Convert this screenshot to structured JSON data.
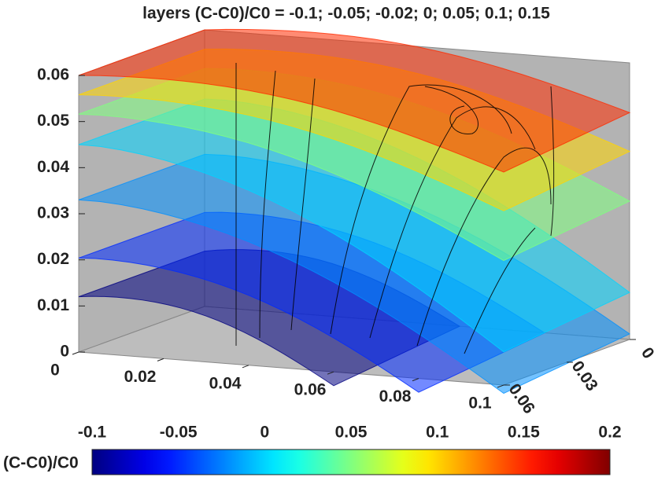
{
  "chart_data": {
    "type": "isosurface3d",
    "title": "layers (C-C0)/C0 = -0.1; -0.05; -0.02; 0; 0.05; 0.1; 0.15",
    "layers": [
      -0.1,
      -0.05,
      -0.02,
      0,
      0.05,
      0.1,
      0.15
    ],
    "xlim": [
      0,
      0.1
    ],
    "xticks": [
      0,
      0.02,
      0.04,
      0.06,
      0.08,
      0.1
    ],
    "ylim": [
      0,
      0.06
    ],
    "yticks": [
      0,
      0.03,
      0.06
    ],
    "zlim": [
      0,
      0.06
    ],
    "zticks": [
      0,
      0.01,
      0.02,
      0.03,
      0.04,
      0.05,
      0.06
    ],
    "colorbar_label": "(C-C0)/C0",
    "clim": [
      -0.1,
      0.2
    ],
    "cticks": [
      -0.1,
      -0.05,
      0,
      0.05,
      0.1,
      0.15,
      0.2
    ],
    "colormap": "jet"
  }
}
